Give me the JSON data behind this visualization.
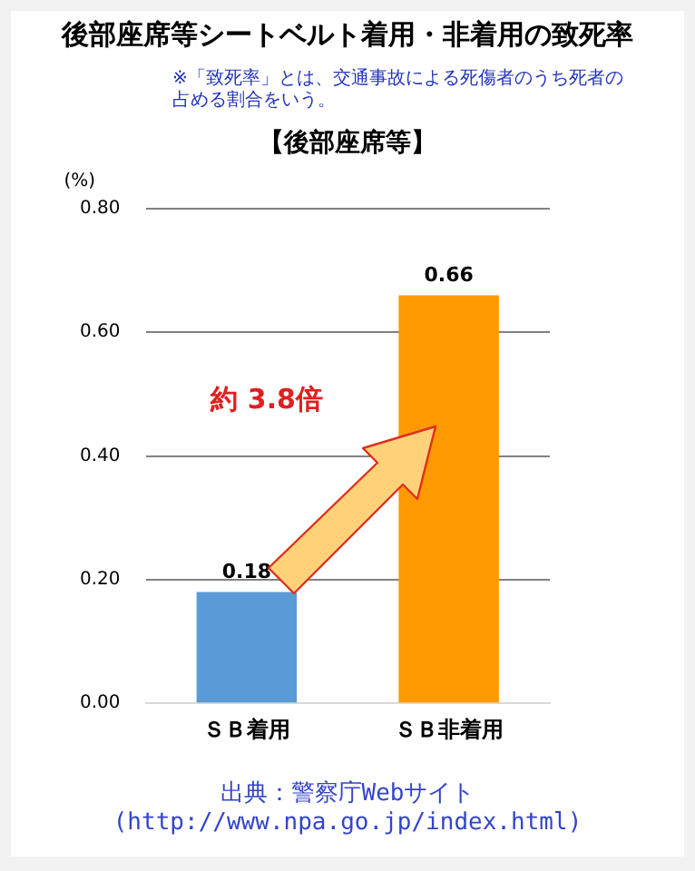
{
  "chart_data": {
    "type": "bar",
    "title": "後部座席等シートベルト着用・非着用の致死率",
    "subtitle": "【後部座席等】",
    "ylabel": "(%)",
    "categories": [
      "ＳＢ着用",
      "ＳＢ非着用"
    ],
    "values": [
      0.18,
      0.66
    ],
    "colors": [
      "#5b9bd5",
      "#ff9900"
    ],
    "ylim": [
      0,
      0.8
    ],
    "yticks": [
      {
        "value": 0,
        "label": "0.00"
      },
      {
        "value": 0.2,
        "label": "0.20"
      },
      {
        "value": 0.4,
        "label": "0.40"
      },
      {
        "value": 0.6,
        "label": "0.60"
      },
      {
        "value": 0.8,
        "label": "0.80"
      }
    ],
    "grid": "y",
    "data_labels": true,
    "annotations": [
      "※「致死率」とは、交通事故による死傷者のうち死者の占める割合をいう。",
      "約 3.8倍",
      "出典：警察庁Webサイト",
      "(http://www.npa.go.jp/index.html)"
    ]
  }
}
